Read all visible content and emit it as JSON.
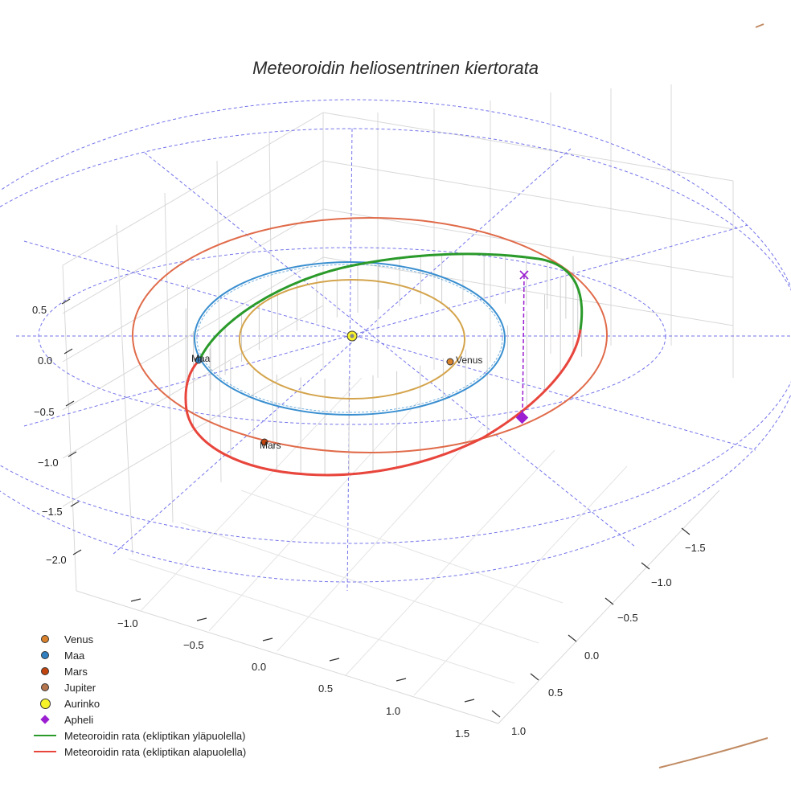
{
  "chart_data": {
    "type": "3d-line",
    "title": "Meteoroidin heliosentrinen kiertorata",
    "axes": {
      "x": {
        "ticks": [
          "−1.0",
          "−0.5",
          "0.0",
          "0.5",
          "1.0",
          "1.5"
        ]
      },
      "y": {
        "ticks": [
          "−1.5",
          "−1.0",
          "−0.5",
          "0.0",
          "0.5",
          "1.0"
        ]
      },
      "z": {
        "ticks": [
          "0.5",
          "0.0",
          "−0.5",
          "−1.0",
          "−1.5",
          "−2.0"
        ]
      }
    },
    "planets": [
      {
        "name": "Venus",
        "label": "Venus",
        "color": "#d9822b",
        "orbit_color": "#d4a44c",
        "orbit_radius_au": 0.72
      },
      {
        "name": "Maa",
        "label": "Maa",
        "color": "#2f7fc1",
        "orbit_color": "#3a8fd0",
        "orbit_radius_au": 1.0
      },
      {
        "name": "Mars",
        "label": "Mars",
        "color": "#c1440e",
        "orbit_color": "#e06b4a",
        "orbit_radius_au": 1.52
      },
      {
        "name": "Jupiter",
        "label": "",
        "color": "#b5754e",
        "orbit_color": "#c08a62",
        "orbit_radius_au": 5.2
      }
    ],
    "sun": {
      "name": "Aurinko",
      "color": "#f7f32b"
    },
    "aphelion": {
      "name": "Apheli",
      "color": "#9b1fd1"
    },
    "meteoroid_orbit": {
      "above_ecliptic": {
        "name": "Meteoroidin rata (ekliptikan yläpuolella)",
        "color": "#2a9a2a"
      },
      "below_ecliptic": {
        "name": "Meteoroidin rata (ekliptikan alapuolella)",
        "color": "#e8453c"
      }
    },
    "legend_position": "bottom-left",
    "grid": true
  },
  "legend": [
    {
      "label": "Venus",
      "kind": "dot",
      "color": "#d9822b"
    },
    {
      "label": "Maa",
      "kind": "dot",
      "color": "#2f7fc1"
    },
    {
      "label": "Mars",
      "kind": "dot",
      "color": "#c1440e"
    },
    {
      "label": "Jupiter",
      "kind": "dot",
      "color": "#b5754e"
    },
    {
      "label": "Aurinko",
      "kind": "sun",
      "color": "#f7f32b"
    },
    {
      "label": "Apheli",
      "kind": "diamond",
      "color": "#9b1fd1"
    },
    {
      "label": "Meteoroidin rata (ekliptikan yläpuolella)",
      "kind": "line",
      "color": "#2a9a2a"
    },
    {
      "label": "Meteoroidin rata (ekliptikan alapuolella)",
      "kind": "line",
      "color": "#e8453c"
    }
  ]
}
